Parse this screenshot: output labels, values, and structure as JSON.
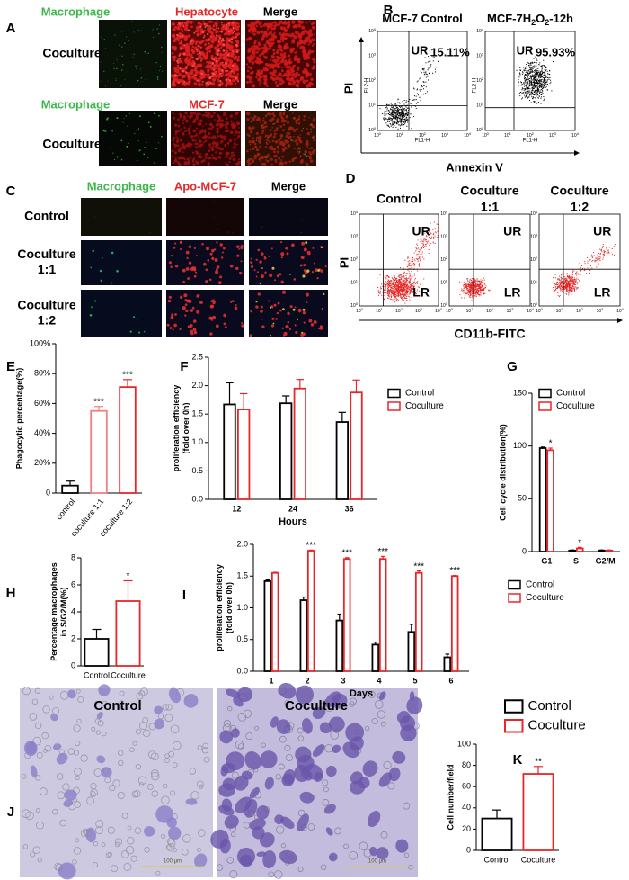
{
  "panel_a": {
    "label": "A",
    "rows": [
      {
        "headers": [
          "Macrophage",
          "Hepatocyte",
          "Merge"
        ],
        "row_label": "Coculture"
      },
      {
        "headers": [
          "Macrophage",
          "MCF-7",
          "Merge"
        ],
        "row_label": "Coculture"
      }
    ]
  },
  "panel_b": {
    "label": "B",
    "plots": [
      {
        "title_parts": [
          "MCF-7 Control"
        ],
        "quadrant": "UR",
        "percent": "15.11%"
      },
      {
        "title_parts": [
          "MCF-7H",
          "2",
          "O",
          "2",
          "-12h"
        ],
        "quadrant": "UR",
        "percent": "95.93%"
      }
    ],
    "y_label": "PI",
    "x_label": "Annexin V",
    "y_channel": "FL2-H",
    "x_channel": "FL1-H",
    "tick_base": "10",
    "tick_exponents": [
      "0",
      "1",
      "2",
      "3",
      "4"
    ]
  },
  "panel_c": {
    "label": "C",
    "headers": [
      "Macrophage",
      "Apo-MCF-7",
      "Merge"
    ],
    "row_labels": [
      [
        "Control"
      ],
      [
        "Coculture",
        "1:1"
      ],
      [
        "Coculture",
        "1:2"
      ]
    ]
  },
  "panel_d": {
    "label": "D",
    "titles": [
      [
        "Control"
      ],
      [
        "Coculture",
        "1:1"
      ],
      [
        "Coculture",
        "1:2"
      ]
    ],
    "quadrants": [
      "UR",
      "LR"
    ],
    "y_label": "PI",
    "x_label": "CD11b-FITC",
    "tick_base": "10",
    "tick_exponents": [
      "0",
      "1",
      "2",
      "3",
      "4"
    ]
  },
  "panel_j": {
    "label": "J",
    "titles": [
      "Control",
      "Coculture"
    ],
    "scale_bar": "100 μm"
  },
  "chart_data": [
    {
      "type": "bar",
      "label": "E",
      "ylabel": "Phagocytic percentage(%)",
      "categories": [
        "control",
        "coculture 1:1",
        "coculture 1:2"
      ],
      "values": [
        5,
        55,
        71
      ],
      "errors": [
        3,
        3,
        5
      ],
      "colors": [
        "#000000",
        "#f08080",
        "#e8262a"
      ],
      "annotations": [
        null,
        "***",
        "***"
      ],
      "ylim": [
        0,
        100
      ],
      "yticks": [
        0,
        {
          "value": 20,
          "label": "20%"
        },
        {
          "value": 40,
          "label": "40%"
        },
        {
          "value": 60,
          "label": "60%"
        },
        {
          "value": 80,
          "label": "80%"
        },
        {
          "value": 100,
          "label": "100%"
        }
      ]
    },
    {
      "type": "bar",
      "label": "F",
      "ylabel": [
        "proliferation efficiency",
        "(fold over 0h)"
      ],
      "xlabel": "Hours",
      "categories": [
        "12",
        "24",
        "36"
      ],
      "series": [
        {
          "name": "Control",
          "color": "#000000",
          "values": [
            1.67,
            1.69,
            1.36
          ],
          "errors": [
            0.38,
            0.13,
            0.17
          ]
        },
        {
          "name": "Coculture",
          "color": "#e8262a",
          "values": [
            1.58,
            1.95,
            1.88
          ],
          "errors": [
            0.28,
            0.16,
            0.22
          ]
        }
      ],
      "ylim": [
        0,
        2.5
      ],
      "yticks": [
        {
          "value": 0,
          "label": "0.0"
        },
        0.5,
        {
          "value": 1,
          "label": "1.0"
        },
        1.5,
        {
          "value": 2,
          "label": "2.0"
        },
        2.5
      ],
      "legend": "upper right"
    },
    {
      "type": "bar",
      "label": "G",
      "ylabel": "Cell cycle distribution(%)",
      "categories": [
        "G1",
        "S",
        "G2/M"
      ],
      "series": [
        {
          "name": "Control",
          "color": "#000000",
          "values": [
            98,
            1,
            1
          ],
          "errors": [
            1,
            0.5,
            0.5
          ]
        },
        {
          "name": "Coculture",
          "color": "#e8262a",
          "values": [
            96,
            3,
            1
          ],
          "errors": [
            2,
            1,
            0.5
          ],
          "annotations": [
            "*",
            "*",
            null
          ]
        }
      ],
      "ylim": [
        0,
        150
      ],
      "yticks": [
        0,
        50,
        100,
        150
      ],
      "legend": "upper right"
    },
    {
      "type": "bar",
      "label": "H",
      "ylabel": [
        "Percentage macrophages",
        "in S/G2/M(%)"
      ],
      "categories": [
        "Control",
        "Coculture"
      ],
      "values": [
        2.0,
        4.8
      ],
      "errors": [
        0.7,
        1.5
      ],
      "colors": [
        "#000000",
        "#e8262a"
      ],
      "annotations": [
        null,
        "*"
      ],
      "ylim": [
        0,
        8
      ],
      "yticks": [
        0,
        2,
        4,
        6,
        8
      ]
    },
    {
      "type": "bar",
      "label": "I",
      "ylabel": [
        "proliferation efficiency",
        "(fold over 0h)"
      ],
      "xlabel": "Days",
      "categories": [
        "1",
        "2",
        "3",
        "4",
        "5",
        "6"
      ],
      "series": [
        {
          "name": "Control",
          "color": "#000000",
          "values": [
            1.42,
            1.12,
            0.8,
            0.42,
            0.62,
            0.22
          ],
          "errors": [
            0.02,
            0.05,
            0.1,
            0.04,
            0.12,
            0.05
          ]
        },
        {
          "name": "Coculture",
          "color": "#e8262a",
          "values": [
            1.55,
            1.9,
            1.77,
            1.77,
            1.55,
            1.5
          ],
          "errors": [
            0.01,
            0.01,
            0.02,
            0.04,
            0.03,
            0.01
          ],
          "annotations": [
            null,
            "***",
            "***",
            "***",
            "***",
            "***"
          ]
        }
      ],
      "ylim": [
        0,
        2
      ],
      "yticks": [
        {
          "value": 0,
          "label": "0.0"
        },
        0.5,
        {
          "value": 1,
          "label": "1.0"
        },
        1.5,
        {
          "value": 2,
          "label": "2.0"
        }
      ],
      "legend": "right"
    },
    {
      "type": "bar",
      "label": "K",
      "ylabel": "Cell number/field",
      "categories": [
        "Control",
        "Coculture"
      ],
      "series_names": [
        "Control",
        "Coculture"
      ],
      "values": [
        30,
        72
      ],
      "errors": [
        8,
        7
      ],
      "colors": [
        "#000000",
        "#e8262a"
      ],
      "annotations": [
        null,
        "**"
      ],
      "ylim": [
        0,
        100
      ],
      "yticks": [
        0,
        20,
        40,
        60,
        80,
        100
      ],
      "legend": "upper right"
    }
  ]
}
